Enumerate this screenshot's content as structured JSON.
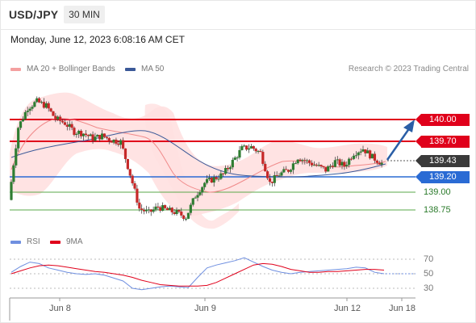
{
  "header": {
    "symbol": "USD/JPY",
    "timeframe": "30 MIN",
    "timestamp": "Monday, June 12, 2023 6:08:16 AM CET"
  },
  "legend": {
    "ma20_label": "MA 20 + Bollinger Bands",
    "ma50_label": "MA 50",
    "credit": "Research © 2023 Trading Central",
    "rsi_label": "RSI",
    "ma9_label": "9MA"
  },
  "levels": {
    "resistance2": "140.00",
    "resistance1": "139.70",
    "last_price": "139.43",
    "pivot": "139.20",
    "support1": "139.00",
    "support2": "138.75"
  },
  "rsi_axis": [
    "70",
    "50",
    "30"
  ],
  "dates": [
    "Jun 8",
    "Jun 9",
    "Jun 12",
    "Jun 18"
  ],
  "colors": {
    "resistance": "#e0001b",
    "pivot": "#2a6bd4",
    "support": "#5aa84a",
    "last": "#3a3a3a",
    "up_candle": "#2e7d32",
    "down_candle": "#c62828",
    "ma50": "#3b5998",
    "bands": "#ffd6d6",
    "arrow": "#2a5ea6"
  },
  "chart_data": {
    "type": "candlestick",
    "title": "USD/JPY",
    "timeframe": "30 MIN",
    "ylim": [
      138.6,
      140.3
    ],
    "close_path": [
      139.0,
      139.85,
      140.08,
      140.15,
      140.1,
      139.95,
      139.9,
      139.8,
      139.78,
      139.72,
      139.75,
      139.7,
      139.68,
      139.3,
      138.9,
      138.85,
      138.92,
      138.88,
      138.85,
      138.8,
      139.05,
      139.2,
      139.25,
      139.3,
      139.45,
      139.6,
      139.62,
      139.55,
      139.2,
      139.3,
      139.35,
      139.5,
      139.45,
      139.4,
      139.35,
      139.45,
      139.4,
      139.55,
      139.6,
      139.5,
      139.43
    ],
    "levels": [
      {
        "label": "140.00",
        "kind": "resistance"
      },
      {
        "label": "139.70",
        "kind": "resistance"
      },
      {
        "label": "139.20",
        "kind": "pivot"
      },
      {
        "label": "139.00",
        "kind": "support"
      },
      {
        "label": "138.75",
        "kind": "support"
      }
    ],
    "rsi": {
      "ticks": [
        70,
        50,
        30
      ],
      "values": [
        52,
        60,
        66,
        64,
        58,
        55,
        52,
        50,
        49,
        50,
        48,
        44,
        40,
        30,
        28,
        30,
        32,
        33,
        32,
        31,
        45,
        58,
        62,
        65,
        68,
        72,
        66,
        60,
        55,
        52,
        50,
        52,
        53,
        54,
        55,
        56,
        57,
        59,
        58,
        52,
        50
      ],
      "ma9": [
        50,
        54,
        58,
        61,
        62,
        61,
        59,
        57,
        55,
        53,
        52,
        50,
        48,
        45,
        41,
        38,
        35,
        34,
        33,
        33,
        33,
        34,
        38,
        44,
        50,
        56,
        62,
        64,
        63,
        60,
        56,
        54,
        52,
        52,
        53,
        53,
        54,
        55,
        56,
        56,
        55
      ]
    },
    "dates": [
      "Jun 8",
      "Jun 9",
      "Jun 12",
      "Jun 18"
    ]
  }
}
